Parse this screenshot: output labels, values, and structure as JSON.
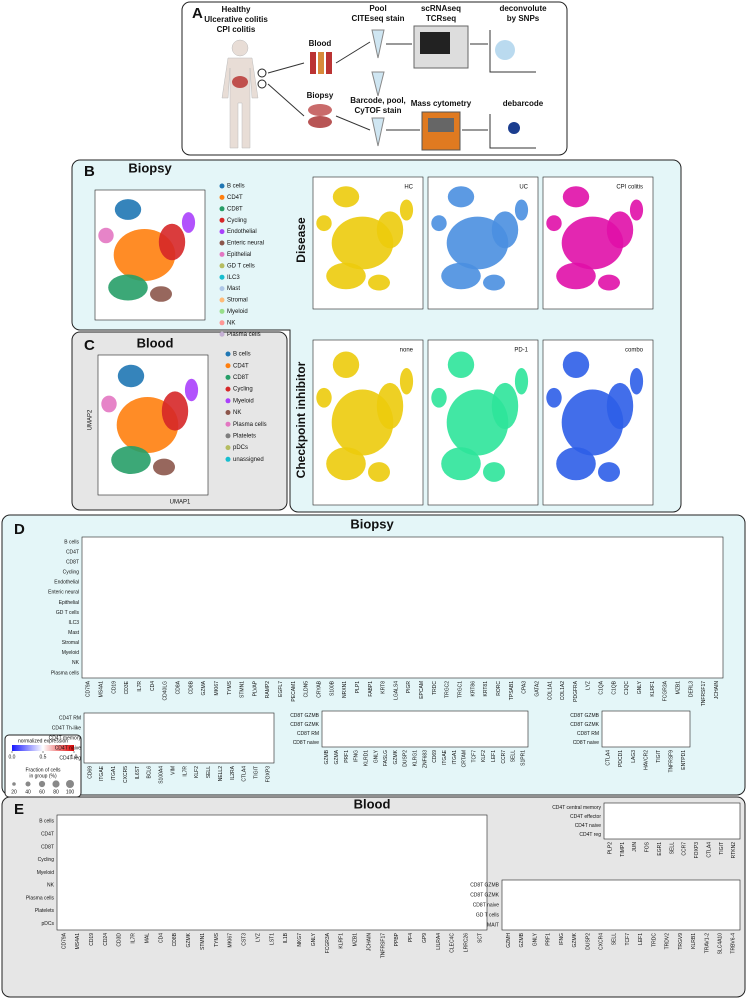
{
  "panel_a": {
    "label": "A",
    "groups": [
      "Healthy",
      "Ulcerative colitis",
      "CPI colitis"
    ],
    "blood": "Blood",
    "biopsy": "Biopsy",
    "pool_stain": [
      "Pool",
      "CITEseq stain"
    ],
    "sequencing": [
      "scRNAseq",
      "TCRseq"
    ],
    "deconvolute": [
      "deconvolute",
      "by SNPs"
    ],
    "barcode": [
      "Barcode, pool,",
      "CyTOF stain"
    ],
    "mass_cytometry": "Mass cytometry",
    "debarcode": "debarcode"
  },
  "panel_b": {
    "label": "B",
    "title": "Biopsy",
    "legend": [
      {
        "name": "B cells",
        "color": "#1f77b4"
      },
      {
        "name": "CD4T",
        "color": "#ff7f0e"
      },
      {
        "name": "CD8T",
        "color": "#279e68"
      },
      {
        "name": "Cycling",
        "color": "#d62728"
      },
      {
        "name": "Endothelial",
        "color": "#aa40fc"
      },
      {
        "name": "Enteric neural",
        "color": "#8c564b"
      },
      {
        "name": "Epithelial",
        "color": "#e377c2"
      },
      {
        "name": "GD T cells",
        "color": "#b5bd61"
      },
      {
        "name": "ILC3",
        "color": "#17becf"
      },
      {
        "name": "Mast",
        "color": "#aec7e8"
      },
      {
        "name": "Stromal",
        "color": "#ffbb78"
      },
      {
        "name": "Myeloid",
        "color": "#98df8a"
      },
      {
        "name": "NK",
        "color": "#ff9896"
      },
      {
        "name": "Plasma cells",
        "color": "#c5b0d5"
      }
    ],
    "row_label": "Disease",
    "umaps": [
      {
        "title": "HC",
        "color": "#eccb0c"
      },
      {
        "title": "UC",
        "color": "#4a8fe0"
      },
      {
        "title": "CPI colitis",
        "color": "#e010a8"
      }
    ]
  },
  "panel_c": {
    "label": "C",
    "title": "Blood",
    "x_label": "UMAP1",
    "y_label": "UMAP2",
    "legend": [
      {
        "name": "B cells",
        "color": "#1f77b4"
      },
      {
        "name": "CD4T",
        "color": "#ff7f0e"
      },
      {
        "name": "CD8T",
        "color": "#279e68"
      },
      {
        "name": "Cycling",
        "color": "#d62728"
      },
      {
        "name": "Myeloid",
        "color": "#aa40fc"
      },
      {
        "name": "NK",
        "color": "#8c564b"
      },
      {
        "name": "Plasma cells",
        "color": "#e377c2"
      },
      {
        "name": "Platelets",
        "color": "#7f7f7f"
      },
      {
        "name": "pDCs",
        "color": "#b5bd61"
      },
      {
        "name": "unassigned",
        "color": "#17becf"
      }
    ],
    "row_label": "Checkpoint inhibitor",
    "umaps": [
      {
        "title": "none",
        "color": "#eccb0c"
      },
      {
        "title": "PD-1",
        "color": "#2ee49a"
      },
      {
        "title": "combo",
        "color": "#2e5ee8"
      }
    ]
  },
  "panel_d": {
    "label": "D",
    "title": "Biopsy",
    "main": {
      "rows": [
        "B cells",
        "CD4T",
        "CD8T",
        "Cycling",
        "Endothelial",
        "Enteric neural",
        "Epithelial",
        "GD T cells",
        "ILC3",
        "Mast",
        "Stromal",
        "Myeloid",
        "NK",
        "Plasma cells"
      ],
      "genes": [
        "CD79A",
        "MS4A1",
        "CD19",
        "CD3E",
        "IL7R",
        "CD4",
        "CD40LG",
        "CD8A",
        "CD8B",
        "GZMA",
        "MKI67",
        "TYMS",
        "STMN1",
        "PLVAP",
        "RAMP2",
        "EGFL7",
        "PECAM1",
        "CLDN5",
        "CRYAB",
        "S100B",
        "NRXN1",
        "PLP1",
        "FABP1",
        "KRT8",
        "LGALS4",
        "PIGR",
        "EPCAM",
        "TRDC",
        "TRGC2",
        "TRGC1",
        "KRT86",
        "KRT81",
        "RORC",
        "TPSAB1",
        "CPA3",
        "GATA2",
        "COL1A1",
        "COL1A2",
        "PDGFRA",
        "LYZ",
        "C1QA",
        "C1QB",
        "C1QC",
        "GNLY",
        "KLRF1",
        "FCGR3A",
        "MZB1",
        "DERL3",
        "TNFRSF17",
        "JCHAIN"
      ]
    },
    "cd4": {
      "rows": [
        "CD4T RM",
        "CD4T Th-like",
        "CD4T memory",
        "CD4T naive",
        "CD4T reg"
      ],
      "genes": [
        "CD69",
        "ITGAE",
        "ITGA1",
        "CXCR5",
        "IL6ST",
        "BCL6",
        "S100A4",
        "VIM",
        "IL7R",
        "KLF2",
        "SELL",
        "NELL2",
        "IL2RA",
        "CTLA4",
        "TIGIT",
        "FOXP3"
      ]
    },
    "cd8": {
      "rows": [
        "CD8T GZMB",
        "CD8T GZMK",
        "CD8T RM",
        "CD8T naive"
      ],
      "genes": [
        "GZMB",
        "GZMA",
        "PRF1",
        "IFNG",
        "KLRD1",
        "GNLY",
        "FASLG",
        "GZMK",
        "DUSP2",
        "KLRG1",
        "ZNF683",
        "CD69",
        "ITGAE",
        "ITGA1",
        "CRTAM",
        "TCF7",
        "KLF2",
        "LEF1",
        "CCR7",
        "SELL",
        "S1PR1"
      ]
    },
    "cd8_exhaustion": {
      "rows": [
        "CD8T GZMB",
        "CD8T GZMK",
        "CD8T RM",
        "CD8T naive"
      ],
      "genes": [
        "CTLA4",
        "PDCD1",
        "LAG3",
        "HAVCR2",
        "TIGIT",
        "TNFRSF9",
        "ENTPD1"
      ]
    }
  },
  "legend": {
    "color_title": "normalized expression",
    "color_ticks": [
      {
        "value": 0,
        "label": "0.0"
      },
      {
        "value": 0.5,
        "label": "0.5"
      },
      {
        "value": 1,
        "label": "1.0"
      }
    ],
    "size_title": [
      "Fraction of cells",
      "in group (%)"
    ],
    "size_ticks": [
      20,
      40,
      60,
      80,
      100
    ]
  },
  "panel_e": {
    "label": "E",
    "title": "Blood",
    "main": {
      "rows": [
        "B cells",
        "CD4T",
        "CD8T",
        "Cycling",
        "Myeloid",
        "NK",
        "Plasma cells",
        "Platelets",
        "pDCs"
      ],
      "genes": [
        "CD79A",
        "MS4A1",
        "CD19",
        "CD24",
        "CD3D",
        "IL7R",
        "MAL",
        "CD4",
        "CD8B",
        "GZMK",
        "STMN1",
        "TYMS",
        "MKI67",
        "CST3",
        "LYZ",
        "LST1",
        "IL1B",
        "NKG7",
        "GNLY",
        "FCGR3A",
        "KLRF1",
        "MZB1",
        "JCHAIN",
        "TNFRSF17",
        "PPBP",
        "PF4",
        "GP9",
        "LILRA4",
        "CLEC4C",
        "LRRC26",
        "SCT"
      ]
    },
    "cd4": {
      "rows": [
        "CD4T central memory",
        "CD4T effector",
        "CD4T naive",
        "CD4T reg"
      ],
      "genes": [
        "PLP2",
        "TIMP1",
        "JUN",
        "FOS",
        "EGR1",
        "SELL",
        "CCR7",
        "FOXP3",
        "CTLA4",
        "TIGIT",
        "RTKN2"
      ]
    },
    "cd8": {
      "rows": [
        "CD8T GZMB",
        "CD8T GZMK",
        "CD8T naive",
        "GD T cells",
        "MAIT"
      ],
      "genes": [
        "GZMH",
        "GZMB",
        "GNLY",
        "PRF1",
        "IFNG",
        "GZMK",
        "DUSP2",
        "CXCR4",
        "SELL",
        "TCF7",
        "LEF1",
        "TRDC",
        "TRDV2",
        "TRGV9",
        "KLRB1",
        "TRAV1-2",
        "SLC4A10",
        "TRBV6-4"
      ]
    }
  }
}
